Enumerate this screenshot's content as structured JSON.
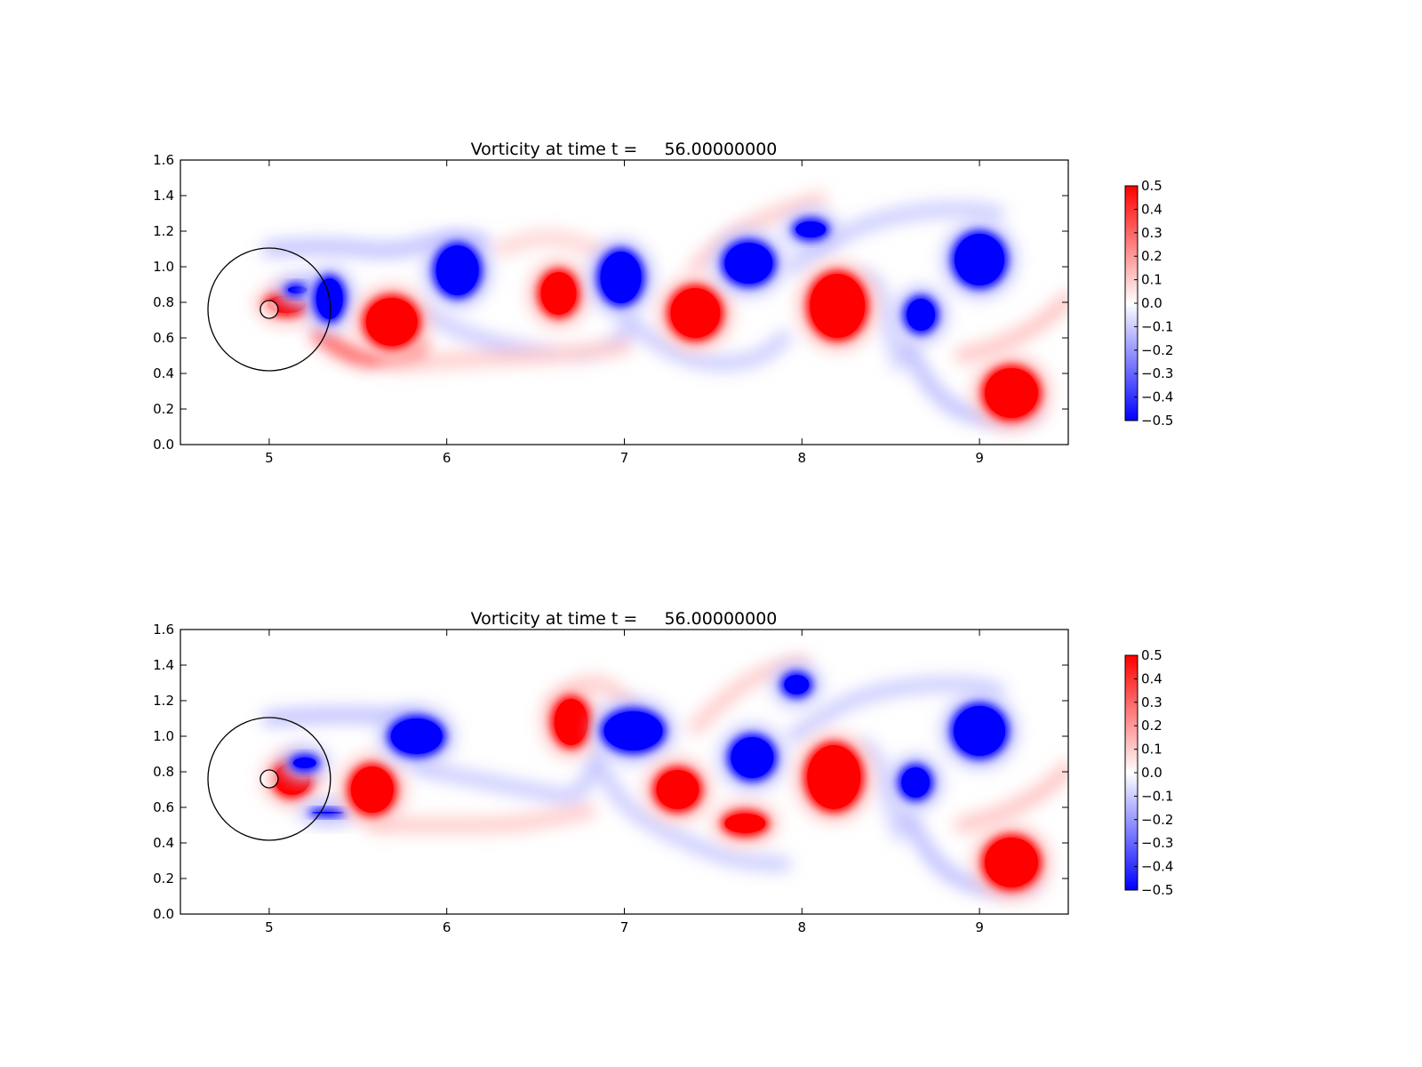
{
  "figure": {
    "background": "#ffffff"
  },
  "chart_data": [
    {
      "type": "heatmap",
      "title": "Vorticity at time t =     56.00000000",
      "xlabel": "",
      "ylabel": "",
      "xlim": [
        4.5,
        9.5
      ],
      "ylim": [
        0.0,
        1.6
      ],
      "x_ticks": [
        5,
        6,
        7,
        8,
        9
      ],
      "y_ticks": [
        0.0,
        0.2,
        0.4,
        0.6,
        0.8,
        1.0,
        1.2,
        1.4,
        1.6
      ],
      "colorbar": {
        "vmin": -0.5,
        "vmax": 0.5,
        "ticks": [
          0.5,
          0.4,
          0.3,
          0.2,
          0.1,
          0.0,
          -0.1,
          -0.2,
          -0.3,
          -0.4,
          -0.5
        ],
        "colormap": "bwr",
        "colors": {
          "min": "#0000ff",
          "mid": "#ffffff",
          "max": "#ff0000"
        }
      },
      "grid": false,
      "circles": [
        {
          "cx": 5.0,
          "cy": 0.76,
          "r": 0.345
        },
        {
          "cx": 5.0,
          "cy": 0.76,
          "r": 0.05
        }
      ],
      "vortices": [
        {
          "x": 5.1,
          "y": 0.79,
          "w": 0.26,
          "h": 0.14,
          "value": 0.5
        },
        {
          "x": 5.16,
          "y": 0.87,
          "w": 0.15,
          "h": 0.08,
          "value": -0.5
        },
        {
          "x": 5.34,
          "y": 0.82,
          "w": 0.19,
          "h": 0.27,
          "value": -0.5
        },
        {
          "x": 5.69,
          "y": 0.69,
          "w": 0.33,
          "h": 0.31,
          "value": 0.5
        },
        {
          "x": 6.06,
          "y": 0.98,
          "w": 0.28,
          "h": 0.32,
          "value": -0.5
        },
        {
          "x": 6.63,
          "y": 0.85,
          "w": 0.24,
          "h": 0.28,
          "value": 0.5
        },
        {
          "x": 6.98,
          "y": 0.94,
          "w": 0.27,
          "h": 0.33,
          "value": -0.5
        },
        {
          "x": 7.4,
          "y": 0.74,
          "w": 0.32,
          "h": 0.32,
          "value": 0.5
        },
        {
          "x": 7.7,
          "y": 1.02,
          "w": 0.31,
          "h": 0.27,
          "value": -0.5
        },
        {
          "x": 8.05,
          "y": 1.21,
          "w": 0.21,
          "h": 0.13,
          "value": -0.5
        },
        {
          "x": 8.2,
          "y": 0.78,
          "w": 0.35,
          "h": 0.4,
          "value": 0.5
        },
        {
          "x": 8.67,
          "y": 0.73,
          "w": 0.2,
          "h": 0.22,
          "value": -0.5
        },
        {
          "x": 9.0,
          "y": 1.04,
          "w": 0.32,
          "h": 0.33,
          "value": -0.5
        },
        {
          "x": 9.18,
          "y": 0.29,
          "w": 0.34,
          "h": 0.32,
          "value": 0.5
        }
      ],
      "sheets": [
        {
          "points": [
            [
              5.0,
              1.1
            ],
            [
              5.35,
              1.12
            ],
            [
              5.7,
              1.08
            ],
            [
              5.95,
              1.15
            ],
            [
              6.2,
              1.14
            ]
          ],
          "value": -0.15
        },
        {
          "points": [
            [
              5.28,
              0.62
            ],
            [
              5.45,
              0.5
            ],
            [
              5.65,
              0.47
            ],
            [
              5.85,
              0.55
            ]
          ],
          "value": 0.4
        },
        {
          "points": [
            [
              5.85,
              0.75
            ],
            [
              6.15,
              0.6
            ],
            [
              6.5,
              0.52
            ],
            [
              6.85,
              0.5
            ],
            [
              7.0,
              0.62
            ]
          ],
          "value": -0.12
        },
        {
          "points": [
            [
              5.7,
              0.45
            ],
            [
              6.1,
              0.48
            ],
            [
              6.6,
              0.5
            ],
            [
              7.0,
              0.55
            ]
          ],
          "value": 0.12
        },
        {
          "points": [
            [
              6.3,
              1.1
            ],
            [
              6.55,
              1.18
            ],
            [
              6.8,
              1.12
            ],
            [
              7.0,
              1.0
            ]
          ],
          "value": 0.1
        },
        {
          "points": [
            [
              7.0,
              0.72
            ],
            [
              7.2,
              0.55
            ],
            [
              7.45,
              0.45
            ],
            [
              7.75,
              0.47
            ],
            [
              7.9,
              0.6
            ]
          ],
          "value": -0.12
        },
        {
          "points": [
            [
              7.4,
              1.0
            ],
            [
              7.6,
              1.18
            ],
            [
              7.85,
              1.3
            ],
            [
              8.1,
              1.38
            ]
          ],
          "value": 0.12
        },
        {
          "points": [
            [
              7.95,
              1.0
            ],
            [
              8.25,
              1.2
            ],
            [
              8.55,
              1.3
            ],
            [
              8.9,
              1.33
            ],
            [
              9.1,
              1.3
            ]
          ],
          "value": -0.12
        },
        {
          "points": [
            [
              8.6,
              0.55
            ],
            [
              8.7,
              0.35
            ],
            [
              8.85,
              0.2
            ],
            [
              9.05,
              0.14
            ],
            [
              9.3,
              0.18
            ]
          ],
          "value": -0.15
        },
        {
          "points": [
            [
              8.9,
              0.5
            ],
            [
              9.1,
              0.55
            ],
            [
              9.35,
              0.68
            ],
            [
              9.5,
              0.82
            ]
          ],
          "value": 0.14
        },
        {
          "points": [
            [
              8.35,
              0.95
            ],
            [
              8.45,
              0.88
            ],
            [
              8.5,
              0.6
            ],
            [
              8.55,
              0.45
            ]
          ],
          "value": -0.1
        }
      ]
    },
    {
      "type": "heatmap",
      "title": "Vorticity at time t =     56.00000000",
      "xlabel": "",
      "ylabel": "",
      "xlim": [
        4.5,
        9.5
      ],
      "ylim": [
        0.0,
        1.6
      ],
      "x_ticks": [
        5,
        6,
        7,
        8,
        9
      ],
      "y_ticks": [
        0.0,
        0.2,
        0.4,
        0.6,
        0.8,
        1.0,
        1.2,
        1.4,
        1.6
      ],
      "colorbar": {
        "vmin": -0.5,
        "vmax": 0.5,
        "ticks": [
          0.5,
          0.4,
          0.3,
          0.2,
          0.1,
          0.0,
          -0.1,
          -0.2,
          -0.3,
          -0.4,
          -0.5
        ],
        "colormap": "bwr",
        "colors": {
          "min": "#0000ff",
          "mid": "#ffffff",
          "max": "#ff0000"
        }
      },
      "grid": false,
      "circles": [
        {
          "cx": 5.0,
          "cy": 0.76,
          "r": 0.345
        },
        {
          "cx": 5.0,
          "cy": 0.76,
          "r": 0.05
        }
      ],
      "vortices": [
        {
          "x": 5.13,
          "y": 0.76,
          "w": 0.24,
          "h": 0.22,
          "value": 0.5
        },
        {
          "x": 5.2,
          "y": 0.85,
          "w": 0.17,
          "h": 0.1,
          "value": -0.5
        },
        {
          "x": 5.33,
          "y": 0.57,
          "w": 0.22,
          "h": 0.05,
          "value": -0.5
        },
        {
          "x": 5.58,
          "y": 0.7,
          "w": 0.28,
          "h": 0.3,
          "value": 0.5
        },
        {
          "x": 5.83,
          "y": 1.0,
          "w": 0.33,
          "h": 0.24,
          "value": -0.5
        },
        {
          "x": 6.7,
          "y": 1.08,
          "w": 0.23,
          "h": 0.3,
          "value": 0.5
        },
        {
          "x": 7.05,
          "y": 1.03,
          "w": 0.37,
          "h": 0.26,
          "value": -0.5
        },
        {
          "x": 7.3,
          "y": 0.7,
          "w": 0.28,
          "h": 0.26,
          "value": 0.5
        },
        {
          "x": 7.68,
          "y": 0.51,
          "w": 0.27,
          "h": 0.15,
          "value": 0.5
        },
        {
          "x": 7.72,
          "y": 0.88,
          "w": 0.28,
          "h": 0.27,
          "value": -0.5
        },
        {
          "x": 7.97,
          "y": 1.29,
          "w": 0.18,
          "h": 0.15,
          "value": -0.5
        },
        {
          "x": 8.18,
          "y": 0.77,
          "w": 0.34,
          "h": 0.4,
          "value": 0.5
        },
        {
          "x": 8.64,
          "y": 0.74,
          "w": 0.2,
          "h": 0.21,
          "value": -0.5
        },
        {
          "x": 9.0,
          "y": 1.03,
          "w": 0.33,
          "h": 0.32,
          "value": -0.5
        },
        {
          "x": 9.18,
          "y": 0.29,
          "w": 0.34,
          "h": 0.32,
          "value": 0.5
        }
      ],
      "sheets": [
        {
          "points": [
            [
              5.0,
              1.1
            ],
            [
              5.3,
              1.12
            ],
            [
              5.55,
              1.12
            ],
            [
              5.8,
              1.1
            ]
          ],
          "value": -0.15
        },
        {
          "points": [
            [
              5.85,
              0.82
            ],
            [
              6.2,
              0.75
            ],
            [
              6.55,
              0.68
            ],
            [
              6.75,
              0.65
            ],
            [
              6.85,
              0.9
            ]
          ],
          "value": -0.12
        },
        {
          "points": [
            [
              5.6,
              0.5
            ],
            [
              6.0,
              0.5
            ],
            [
              6.4,
              0.5
            ],
            [
              6.8,
              0.58
            ]
          ],
          "value": 0.12
        },
        {
          "points": [
            [
              6.6,
              1.15
            ],
            [
              6.75,
              1.3
            ],
            [
              6.9,
              1.3
            ],
            [
              7.05,
              1.15
            ]
          ],
          "value": 0.12
        },
        {
          "points": [
            [
              6.85,
              0.85
            ],
            [
              7.0,
              0.6
            ],
            [
              7.25,
              0.45
            ],
            [
              7.6,
              0.3
            ],
            [
              7.9,
              0.28
            ]
          ],
          "value": -0.12
        },
        {
          "points": [
            [
              7.4,
              1.05
            ],
            [
              7.55,
              1.2
            ],
            [
              7.75,
              1.35
            ],
            [
              8.0,
              1.42
            ]
          ],
          "value": 0.12
        },
        {
          "points": [
            [
              7.95,
              1.0
            ],
            [
              8.25,
              1.2
            ],
            [
              8.55,
              1.28
            ],
            [
              8.9,
              1.3
            ],
            [
              9.1,
              1.26
            ]
          ],
          "value": -0.12
        },
        {
          "points": [
            [
              8.6,
              0.55
            ],
            [
              8.7,
              0.35
            ],
            [
              8.85,
              0.2
            ],
            [
              9.05,
              0.14
            ],
            [
              9.3,
              0.18
            ]
          ],
          "value": -0.15
        },
        {
          "points": [
            [
              8.9,
              0.5
            ],
            [
              9.1,
              0.55
            ],
            [
              9.35,
              0.68
            ],
            [
              9.5,
              0.82
            ]
          ],
          "value": 0.14
        },
        {
          "points": [
            [
              8.35,
              0.95
            ],
            [
              8.45,
              0.85
            ],
            [
              8.5,
              0.6
            ],
            [
              8.55,
              0.45
            ]
          ],
          "value": -0.1
        }
      ]
    }
  ]
}
